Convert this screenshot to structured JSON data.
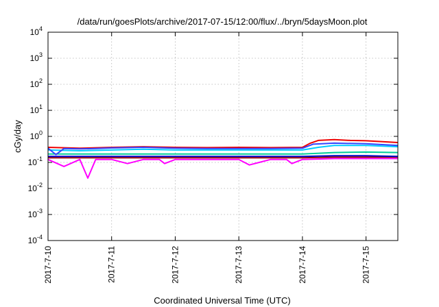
{
  "chart_data": {
    "type": "line",
    "title": "/data/run/goesPlots/archive/2017-07-15/12:00/flux/../bryn/5daysMoon.plot",
    "xlabel": "Coordinated Universal Time (UTC)",
    "ylabel": "cGy/day",
    "yscale": "log",
    "ylim": [
      0.0001,
      10000
    ],
    "xlim": [
      "2017-07-10T00:00",
      "2017-07-15T12:00"
    ],
    "grid": true,
    "x_ticks": [
      "2017-7-10",
      "2017-7-11",
      "2017-7-12",
      "2017-7-13",
      "2017-7-14",
      "2017-7-15"
    ],
    "y_ticks": [
      {
        "value": 0.0001,
        "base": "10",
        "exp": "-4"
      },
      {
        "value": 0.001,
        "base": "10",
        "exp": "-3"
      },
      {
        "value": 0.01,
        "base": "10",
        "exp": "-2"
      },
      {
        "value": 0.1,
        "base": "10",
        "exp": "-1"
      },
      {
        "value": 1,
        "base": "10",
        "exp": "0"
      },
      {
        "value": 10,
        "base": "10",
        "exp": "1"
      },
      {
        "value": 100,
        "base": "10",
        "exp": "2"
      },
      {
        "value": 1000,
        "base": "10",
        "exp": "3"
      },
      {
        "value": 10000,
        "base": "10",
        "exp": "4"
      }
    ],
    "series": [
      {
        "color": "#ff00ff",
        "x": [
          "2017-07-10T00:00",
          "2017-07-10T06:00",
          "2017-07-10T12:00",
          "2017-07-10T15:00",
          "2017-07-10T18:00",
          "2017-07-11T00:00",
          "2017-07-11T06:00",
          "2017-07-11T12:00",
          "2017-07-11T18:00",
          "2017-07-11T20:00",
          "2017-07-12T00:00",
          "2017-07-12T12:00",
          "2017-07-12T18:00",
          "2017-07-13T00:00",
          "2017-07-13T04:00",
          "2017-07-13T12:00",
          "2017-07-13T18:00",
          "2017-07-13T20:00",
          "2017-07-14T00:00",
          "2017-07-14T12:00",
          "2017-07-15T00:00",
          "2017-07-15T12:00"
        ],
        "y": [
          0.13,
          0.07,
          0.13,
          0.025,
          0.13,
          0.13,
          0.09,
          0.13,
          0.13,
          0.09,
          0.13,
          0.13,
          0.13,
          0.13,
          0.08,
          0.13,
          0.13,
          0.09,
          0.13,
          0.14,
          0.14,
          0.14
        ]
      },
      {
        "color": "#990000",
        "x": [
          "2017-07-10T00:00",
          "2017-07-11T00:00",
          "2017-07-12T00:00",
          "2017-07-13T00:00",
          "2017-07-14T00:00",
          "2017-07-14T12:00",
          "2017-07-15T00:00",
          "2017-07-15T12:00"
        ],
        "y": [
          0.15,
          0.15,
          0.15,
          0.15,
          0.15,
          0.16,
          0.16,
          0.16
        ]
      },
      {
        "color": "#0000cc",
        "x": [
          "2017-07-10T00:00",
          "2017-07-11T00:00",
          "2017-07-12T00:00",
          "2017-07-13T00:00",
          "2017-07-14T00:00",
          "2017-07-14T12:00",
          "2017-07-15T00:00",
          "2017-07-15T12:00"
        ],
        "y": [
          0.17,
          0.17,
          0.17,
          0.17,
          0.17,
          0.18,
          0.18,
          0.17
        ]
      },
      {
        "color": "#00cc99",
        "x": [
          "2017-07-10T00:00",
          "2017-07-11T00:00",
          "2017-07-12T00:00",
          "2017-07-13T00:00",
          "2017-07-14T00:00",
          "2017-07-14T12:00",
          "2017-07-15T00:00",
          "2017-07-15T12:00"
        ],
        "y": [
          0.21,
          0.21,
          0.21,
          0.21,
          0.21,
          0.24,
          0.25,
          0.24
        ]
      },
      {
        "color": "#00ccff",
        "x": [
          "2017-07-10T00:00",
          "2017-07-10T12:00",
          "2017-07-11T00:00",
          "2017-07-11T12:00",
          "2017-07-12T00:00",
          "2017-07-12T12:00",
          "2017-07-13T00:00",
          "2017-07-13T12:00",
          "2017-07-14T00:00",
          "2017-07-14T06:00",
          "2017-07-14T12:00",
          "2017-07-15T00:00",
          "2017-07-15T12:00"
        ],
        "y": [
          0.3,
          0.28,
          0.3,
          0.32,
          0.3,
          0.3,
          0.3,
          0.3,
          0.3,
          0.38,
          0.45,
          0.45,
          0.4
        ]
      },
      {
        "color": "#ee0000",
        "x": [
          "2017-07-10T00:00",
          "2017-07-10T12:00",
          "2017-07-11T00:00",
          "2017-07-11T12:00",
          "2017-07-12T00:00",
          "2017-07-12T12:00",
          "2017-07-13T00:00",
          "2017-07-13T12:00",
          "2017-07-14T00:00",
          "2017-07-14T03:00",
          "2017-07-14T06:00",
          "2017-07-14T12:00",
          "2017-07-14T18:00",
          "2017-07-15T00:00",
          "2017-07-15T12:00"
        ],
        "y": [
          0.38,
          0.35,
          0.38,
          0.4,
          0.38,
          0.37,
          0.38,
          0.37,
          0.38,
          0.55,
          0.7,
          0.75,
          0.7,
          0.68,
          0.58
        ]
      },
      {
        "color": "#3344ff",
        "x": [
          "2017-07-10T00:00",
          "2017-07-10T03:00",
          "2017-07-10T06:00",
          "2017-07-10T12:00",
          "2017-07-10T18:00",
          "2017-07-11T00:00",
          "2017-07-11T12:00",
          "2017-07-12T00:00",
          "2017-07-12T12:00",
          "2017-07-13T00:00",
          "2017-07-13T12:00",
          "2017-07-14T00:00",
          "2017-07-14T04:00",
          "2017-07-14T12:00",
          "2017-07-15T00:00",
          "2017-07-15T12:00"
        ],
        "y": [
          0.35,
          0.2,
          0.34,
          0.33,
          0.34,
          0.36,
          0.38,
          0.35,
          0.34,
          0.34,
          0.34,
          0.35,
          0.5,
          0.55,
          0.52,
          0.45
        ]
      }
    ]
  }
}
